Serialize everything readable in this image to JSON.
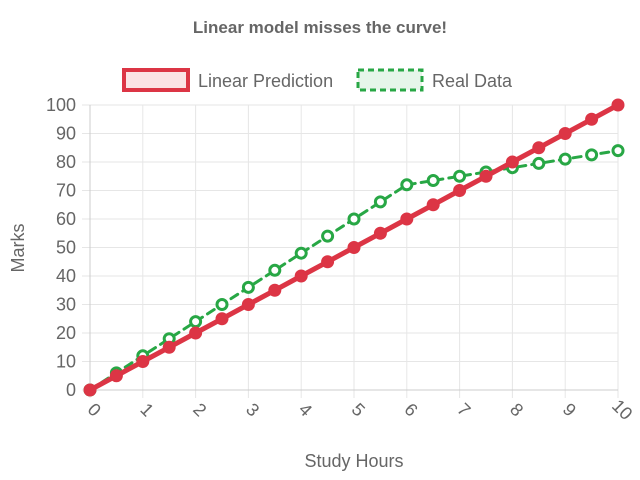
{
  "chart_data": {
    "type": "line",
    "title": "Linear model misses the curve!",
    "xlabel": "Study Hours",
    "ylabel": "Marks",
    "xlim": [
      0,
      10
    ],
    "ylim": [
      0,
      100
    ],
    "x_ticks": [
      "0",
      "1",
      "2",
      "3",
      "4",
      "5",
      "6",
      "7",
      "8",
      "9",
      "10"
    ],
    "y_ticks": [
      "0",
      "10",
      "20",
      "30",
      "40",
      "50",
      "60",
      "70",
      "80",
      "90",
      "100"
    ],
    "grid": true,
    "legend_position": "top",
    "x": [
      0,
      0.5,
      1,
      1.5,
      2,
      2.5,
      3,
      3.5,
      4,
      4.5,
      5,
      5.5,
      6,
      6.5,
      7,
      7.5,
      8,
      8.5,
      9,
      9.5,
      10
    ],
    "series": [
      {
        "name": "Linear Prediction",
        "color": "#dc3545",
        "fill": "#fbe3e5",
        "style": "solid",
        "marker": "filled-circle",
        "values": [
          0,
          5,
          10,
          15,
          20,
          25,
          30,
          35,
          40,
          45,
          50,
          55,
          60,
          65,
          70,
          75,
          80,
          85,
          90,
          95,
          100
        ]
      },
      {
        "name": "Real Data",
        "color": "#28a745",
        "fill": "#e6f5e9",
        "style": "dashed",
        "marker": "hollow-circle",
        "values": [
          0,
          6,
          12,
          18,
          24,
          30,
          36,
          42,
          48,
          54,
          60,
          66,
          72,
          73.5,
          75,
          76.5,
          78,
          79.5,
          81,
          82.5,
          84
        ]
      }
    ]
  }
}
